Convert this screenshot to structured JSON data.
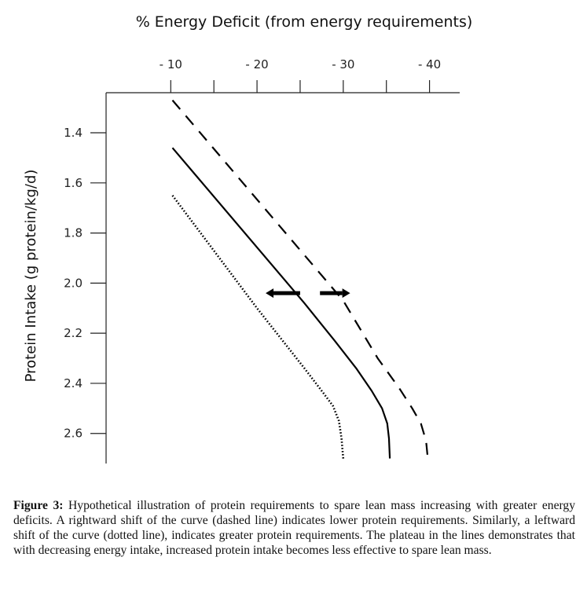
{
  "chart_data": {
    "type": "line",
    "title": "% Energy Deficit (from energy requirements)",
    "xlabel": "% Energy Deficit (from energy requirements)",
    "ylabel": "Protein Intake  (g protein/kg/d)",
    "x_ticks": [
      -10,
      -15,
      -20,
      -25,
      -30,
      -35,
      -40
    ],
    "x_tick_labels": [
      {
        "value": -10,
        "label": "- 10"
      },
      {
        "value": -20,
        "label": "- 20"
      },
      {
        "value": -30,
        "label": "- 30"
      },
      {
        "value": -40,
        "label": "- 40"
      }
    ],
    "y_ticks": [
      {
        "value": 1.4,
        "label": "1.4"
      },
      {
        "value": 1.6,
        "label": "1.6"
      },
      {
        "value": 1.8,
        "label": "1.8"
      },
      {
        "value": 2.0,
        "label": "2.0"
      },
      {
        "value": 2.2,
        "label": "2.2"
      },
      {
        "value": 2.4,
        "label": "2.4"
      },
      {
        "value": 2.6,
        "label": "2.6"
      }
    ],
    "xlim": [
      -2.5,
      -43.5
    ],
    "ylim": [
      1.24,
      2.72
    ],
    "grid": false,
    "series": [
      {
        "name": "dashed line (lower protein requirements)",
        "style": "dashed",
        "points": [
          [
            -10.2,
            1.27
          ],
          [
            -30.0,
            2.07
          ],
          [
            -34.0,
            2.3
          ],
          [
            -36.5,
            2.42
          ],
          [
            -38.0,
            2.5
          ],
          [
            -39.0,
            2.56
          ],
          [
            -39.6,
            2.63
          ],
          [
            -39.8,
            2.7
          ]
        ]
      },
      {
        "name": "solid line",
        "style": "solid",
        "points": [
          [
            -10.2,
            1.46
          ],
          [
            -25.5,
            2.08
          ],
          [
            -29.0,
            2.23
          ],
          [
            -31.5,
            2.34
          ],
          [
            -33.3,
            2.43
          ],
          [
            -34.5,
            2.5
          ],
          [
            -35.1,
            2.56
          ],
          [
            -35.3,
            2.62
          ],
          [
            -35.4,
            2.7
          ]
        ]
      },
      {
        "name": "dotted line (greater protein requirements)",
        "style": "dotted",
        "points": [
          [
            -10.2,
            1.65
          ],
          [
            -20.0,
            2.1
          ],
          [
            -25.5,
            2.34
          ],
          [
            -27.5,
            2.43
          ],
          [
            -28.8,
            2.49
          ],
          [
            -29.5,
            2.55
          ],
          [
            -29.8,
            2.62
          ],
          [
            -30.0,
            2.7
          ]
        ]
      }
    ],
    "annotations": [
      {
        "type": "arrow",
        "direction": "left",
        "from": [
          -25.0,
          2.04
        ],
        "to": [
          -21.0,
          2.04
        ]
      },
      {
        "type": "arrow",
        "direction": "right",
        "from": [
          -27.3,
          2.04
        ],
        "to": [
          -30.8,
          2.04
        ]
      }
    ]
  },
  "caption": {
    "label": "Figure 3:",
    "text": "Hypothetical illustration of protein requirements to spare lean mass increasing with greater energy deficits. A rightward shift of the curve (dashed line) indicates lower protein requirements. Similarly, a leftward shift of the curve (dotted line), indicates greater protein requirements. The plateau in the lines demonstrates that with decreasing energy intake, increased protein intake becomes less effective to spare lean mass."
  }
}
